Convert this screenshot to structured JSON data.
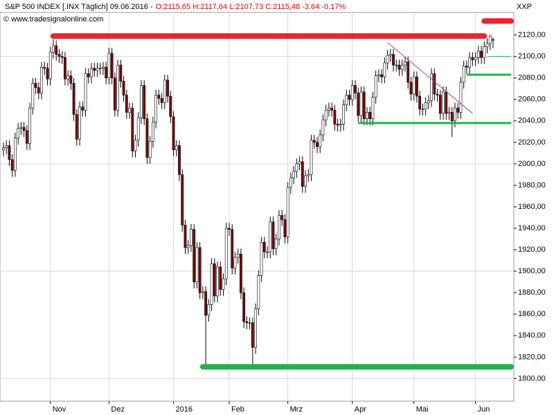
{
  "chart_data": {
    "type": "candlestick",
    "title": "S&P 500 INDEX [.INX  Täglich] 09.06.2016 -",
    "quote": "O:2115,65 H:2117,64 L:2107,73 C:2115,48 -3,64 -0,17%",
    "source": "© www.tradesignalonline.com",
    "symbol": "XXP",
    "up_color": "#ffffff",
    "down_color": "#7a0a0a",
    "grid": true,
    "ygrid": [
      1800,
      1900,
      2000,
      2100
    ],
    "ylim": [
      1779,
      2141
    ],
    "yticks": [
      {
        "value": 1800,
        "label": "1800,00"
      },
      {
        "value": 1820,
        "label": "1820,00"
      },
      {
        "value": 1840,
        "label": "1840,00"
      },
      {
        "value": 1860,
        "label": "1860,00"
      },
      {
        "value": 1880,
        "label": "1880,00"
      },
      {
        "value": 1900,
        "label": "1900,00"
      },
      {
        "value": 1920,
        "label": "1920,00"
      },
      {
        "value": 1940,
        "label": "1940,00"
      },
      {
        "value": 1960,
        "label": "1960,00"
      },
      {
        "value": 1980,
        "label": "1980,00"
      },
      {
        "value": 2000,
        "label": "2000,00"
      },
      {
        "value": 2020,
        "label": "2020,00"
      },
      {
        "value": 2040,
        "label": "2040,00"
      },
      {
        "value": 2060,
        "label": "2060,00"
      },
      {
        "value": 2080,
        "label": "2080,00"
      },
      {
        "value": 2100,
        "label": "2100,00"
      },
      {
        "value": 2120,
        "label": "2120,00"
      }
    ],
    "categories": [
      null,
      null,
      null,
      null,
      null,
      null,
      null,
      null,
      null,
      null,
      null,
      null,
      null,
      null,
      null,
      null,
      "Nov",
      null,
      null,
      null,
      null,
      null,
      null,
      null,
      null,
      null,
      null,
      null,
      null,
      null,
      null,
      null,
      null,
      null,
      null,
      null,
      "Dez",
      null,
      null,
      null,
      null,
      null,
      null,
      null,
      null,
      null,
      null,
      null,
      null,
      null,
      null,
      null,
      null,
      null,
      null,
      null,
      null,
      null,
      "2016",
      null,
      null,
      null,
      null,
      null,
      null,
      null,
      null,
      null,
      null,
      null,
      null,
      null,
      null,
      null,
      null,
      null,
      null,
      "Feb",
      null,
      null,
      null,
      null,
      null,
      null,
      null,
      null,
      null,
      null,
      null,
      null,
      null,
      null,
      null,
      null,
      null,
      null,
      null,
      "Mrz",
      null,
      null,
      null,
      null,
      null,
      null,
      null,
      null,
      null,
      null,
      null,
      null,
      null,
      null,
      null,
      null,
      null,
      null,
      null,
      null,
      null,
      "Apr",
      null,
      null,
      null,
      null,
      null,
      null,
      null,
      null,
      null,
      null,
      null,
      null,
      null,
      null,
      null,
      null,
      null,
      null,
      null,
      null,
      "Mai",
      null,
      null,
      null,
      null,
      null,
      null,
      null,
      null,
      null,
      null,
      null,
      null,
      null,
      null,
      null,
      null,
      null,
      null,
      null,
      null,
      "Jun",
      null,
      null,
      null,
      null,
      null,
      null
    ],
    "open": [
      2013,
      2015,
      2017,
      2004,
      1994,
      2024,
      2033,
      2034,
      2031,
      2019,
      2052,
      2075,
      2071,
      2066,
      2090,
      2089,
      2079,
      2104,
      2110,
      2102,
      2100,
      2099,
      2079,
      2082,
      2075,
      2046,
      2023,
      2053,
      2050,
      2084,
      2081,
      2089,
      2087,
      2089,
      2089,
      2090,
      2080,
      2103,
      2080,
      2050,
      2092,
      2077,
      2064,
      2048,
      2052,
      2012,
      2022,
      2043,
      2073,
      2042,
      2006,
      2021,
      2039,
      2064,
      2061,
      2057,
      2078,
      2063,
      2044,
      2013,
      2017,
      1990,
      1943,
      1922,
      1924,
      1939,
      1890,
      1922,
      1880,
      1881,
      1859,
      1869,
      1907,
      1877,
      1904,
      1883,
      1893,
      1940,
      1939,
      1903,
      1913,
      1916,
      1880,
      1853,
      1852,
      1852,
      1829,
      1865,
      1896,
      1927,
      1918,
      1918,
      1946,
      1921,
      1930,
      1952,
      1948,
      1932,
      1978,
      1987,
      1993,
      2000,
      2002,
      1979,
      1989,
      1990,
      2022,
      2020,
      2016,
      2027,
      2041,
      2050,
      2052,
      2050,
      2037,
      2036,
      2037,
      2055,
      2064,
      2060,
      2073,
      2066,
      2045,
      2067,
      2042,
      2048,
      2042,
      2062,
      2082,
      2083,
      2081,
      2094,
      2101,
      2102,
      2092,
      2092,
      2088,
      2092,
      2095,
      2076,
      2065,
      2081,
      2063,
      2051,
      2051,
      2057,
      2059,
      2084,
      2065,
      2064,
      2047,
      2067,
      2047,
      2048,
      2040,
      2052,
      2048,
      2076,
      2091,
      2090,
      2099,
      2097,
      2099,
      2105,
      2099,
      2109,
      2112,
      2115.65
    ],
    "high": [
      2020,
      2022,
      2022,
      2009,
      2029,
      2038,
      2039,
      2039,
      2036,
      2057,
      2080,
      2080,
      2076,
      2095,
      2095,
      2094,
      2109,
      2116,
      2115,
      2107,
      2105,
      2104,
      2087,
      2087,
      2080,
      2051,
      2058,
      2058,
      2089,
      2089,
      2094,
      2094,
      2094,
      2094,
      2095,
      2095,
      2108,
      2108,
      2085,
      2097,
      2097,
      2082,
      2069,
      2057,
      2057,
      2027,
      2048,
      2078,
      2078,
      2047,
      2026,
      2044,
      2069,
      2069,
      2066,
      2083,
      2083,
      2068,
      2049,
      2022,
      2022,
      1995,
      1948,
      1929,
      1944,
      1944,
      1927,
      1927,
      1886,
      1886,
      1874,
      1912,
      1912,
      1909,
      1909,
      1898,
      1945,
      1945,
      1944,
      1918,
      1921,
      1921,
      1885,
      1858,
      1857,
      1857,
      1870,
      1901,
      1932,
      1932,
      1923,
      1951,
      1951,
      1935,
      1957,
      1957,
      1953,
      1983,
      1992,
      1998,
      2005,
      2007,
      2007,
      1994,
      1995,
      2027,
      2027,
      2025,
      2032,
      2046,
      2055,
      2057,
      2057,
      2055,
      2042,
      2042,
      2060,
      2069,
      2069,
      2078,
      2078,
      2071,
      2072,
      2072,
      2053,
      2053,
      2067,
      2087,
      2088,
      2088,
      2099,
      2106,
      2107,
      2107,
      2097,
      2097,
      2097,
      2100,
      2100,
      2081,
      2086,
      2086,
      2068,
      2056,
      2062,
      2064,
      2089,
      2089,
      2070,
      2069,
      2072,
      2072,
      2053,
      2053,
      2057,
      2057,
      2081,
      2096,
      2096,
      2104,
      2104,
      2104,
      2110,
      2110,
      2114,
      2117,
      2120,
      2117.64
    ],
    "low": [
      2007,
      2009,
      1998,
      1988,
      1988,
      2018,
      2027,
      2025,
      2013,
      2013,
      2046,
      2065,
      2060,
      2060,
      2083,
      2073,
      2073,
      2098,
      2096,
      2094,
      2093,
      2073,
      2073,
      2069,
      2040,
      2017,
      2017,
      2044,
      2044,
      2075,
      2075,
      2081,
      2081,
      2083,
      2083,
      2074,
      2074,
      2074,
      2044,
      2044,
      2071,
      2058,
      2042,
      2042,
      2006,
      2006,
      2016,
      2037,
      2036,
      2000,
      2000,
      2015,
      2033,
      2055,
      2051,
      2051,
      2057,
      2038,
      2007,
      2007,
      1984,
      1937,
      1916,
      1916,
      1918,
      1884,
      1884,
      1874,
      1874,
      1812,
      1853,
      1863,
      1871,
      1871,
      1877,
      1877,
      1887,
      1933,
      1897,
      1897,
      1907,
      1874,
      1847,
      1846,
      1846,
      1810,
      1823,
      1859,
      1890,
      1912,
      1912,
      1912,
      1915,
      1915,
      1924,
      1942,
      1926,
      1926,
      1972,
      1981,
      1987,
      1994,
      1973,
      1973,
      1983,
      1984,
      2014,
      2010,
      2010,
      2021,
      2035,
      2044,
      2044,
      2031,
      2030,
      2030,
      2031,
      2049,
      2054,
      2054,
      2060,
      2039,
      2039,
      2036,
      2036,
      2036,
      2036,
      2056,
      2076,
      2075,
      2075,
      2088,
      2095,
      2086,
      2086,
      2082,
      2082,
      2086,
      2070,
      2059,
      2059,
      2057,
      2045,
      2045,
      2045,
      2051,
      2053,
      2059,
      2058,
      2041,
      2041,
      2041,
      2041,
      2025,
      2034,
      2042,
      2042,
      2070,
      2084,
      2084,
      2091,
      2091,
      2093,
      2093,
      2093,
      2103,
      2106,
      2107.73
    ],
    "close": [
      2015,
      2017,
      2004,
      1994,
      2024,
      2033,
      2034,
      2031,
      2019,
      2052,
      2075,
      2071,
      2066,
      2090,
      2089,
      2079,
      2104,
      2110,
      2102,
      2100,
      2099,
      2079,
      2082,
      2075,
      2046,
      2023,
      2053,
      2050,
      2084,
      2081,
      2089,
      2087,
      2089,
      2089,
      2090,
      2080,
      2103,
      2080,
      2050,
      2092,
      2077,
      2064,
      2048,
      2052,
      2012,
      2022,
      2043,
      2073,
      2042,
      2006,
      2021,
      2039,
      2064,
      2061,
      2057,
      2078,
      2063,
      2044,
      2013,
      2017,
      1990,
      1943,
      1922,
      1924,
      1939,
      1890,
      1922,
      1880,
      1881,
      1859,
      1869,
      1907,
      1877,
      1904,
      1883,
      1893,
      1940,
      1939,
      1903,
      1913,
      1916,
      1880,
      1853,
      1852,
      1852,
      1829,
      1865,
      1896,
      1927,
      1918,
      1918,
      1946,
      1921,
      1930,
      1952,
      1948,
      1932,
      1978,
      1987,
      1993,
      2000,
      2002,
      1979,
      1989,
      1990,
      2022,
      2020,
      2016,
      2027,
      2041,
      2050,
      2052,
      2050,
      2037,
      2036,
      2037,
      2055,
      2064,
      2060,
      2073,
      2066,
      2045,
      2067,
      2042,
      2048,
      2042,
      2062,
      2082,
      2083,
      2081,
      2094,
      2101,
      2102,
      2092,
      2092,
      2088,
      2092,
      2095,
      2076,
      2065,
      2081,
      2063,
      2051,
      2051,
      2057,
      2059,
      2084,
      2065,
      2064,
      2047,
      2067,
      2047,
      2048,
      2040,
      2052,
      2048,
      2076,
      2091,
      2090,
      2099,
      2097,
      2099,
      2105,
      2099,
      2109,
      2112,
      2119,
      2115.48
    ],
    "annotations": [
      {
        "kind": "hline",
        "value": 2119,
        "start": 17,
        "end": 164,
        "color": "#e8262b",
        "style": "thick"
      },
      {
        "kind": "hline",
        "value": 2133,
        "start": 164,
        "extend": "right",
        "color": "#e8262b",
        "style": "thick"
      },
      {
        "kind": "hline",
        "value": 1811,
        "start": 68,
        "extend": "right",
        "color": "#22b14c",
        "style": "thick"
      },
      {
        "kind": "hline",
        "value": 2038,
        "start": 121,
        "extend": "right",
        "color": "#22b14c",
        "style": "medium"
      },
      {
        "kind": "hline",
        "value": 2083,
        "start": 158,
        "extend": "right",
        "color": "#22b14c",
        "style": "medium"
      },
      {
        "kind": "hline",
        "value": 2100,
        "start": 165,
        "extend": "right",
        "color": "#22b14c",
        "style": "thin"
      },
      {
        "kind": "trend",
        "start": 131,
        "end": 160,
        "from": 2113,
        "to": 2047,
        "color": "#a040a0",
        "style": "thin"
      }
    ]
  }
}
